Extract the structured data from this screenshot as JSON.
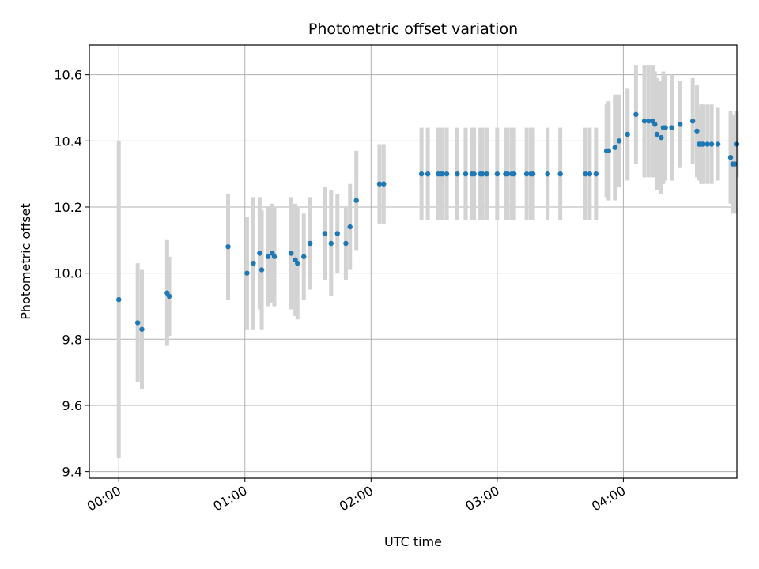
{
  "chart_data": {
    "type": "scatter",
    "title": "Photometric offset variation",
    "xlabel": "UTC time",
    "ylabel": "Photometric offset",
    "xlim": [
      "23:46:00",
      "04:54:00"
    ],
    "ylim": [
      9.38,
      10.69
    ],
    "grid": true,
    "x_ticks": [
      "00:00",
      "01:00",
      "02:00",
      "03:00",
      "04:00"
    ],
    "y_ticks": [
      "9.4",
      "9.6",
      "9.8",
      "10.0",
      "10.2",
      "10.4",
      "10.6"
    ],
    "colors": {
      "point": "#1f77b4",
      "errorbar": "#d3d3d3",
      "grid": "#b0b0b0"
    },
    "series": [
      {
        "x": [
          "00:00",
          "00:09",
          "00:11",
          "00:23",
          "00:24",
          "00:52",
          "01:01",
          "01:04",
          "01:07",
          "01:08",
          "01:11",
          "01:13",
          "01:14",
          "01:22",
          "01:24",
          "01:25",
          "01:28",
          "01:31",
          "01:38",
          "01:41",
          "01:44",
          "01:48",
          "01:50",
          "01:53",
          "02:04",
          "02:06",
          "02:24",
          "02:27",
          "02:32",
          "02:33",
          "02:34",
          "02:36",
          "02:41",
          "02:45",
          "02:48",
          "02:49",
          "02:52",
          "02:53",
          "02:55",
          "03:00",
          "03:04",
          "03:05",
          "03:07",
          "03:08",
          "03:14",
          "03:16",
          "03:17",
          "03:24",
          "03:30",
          "03:42",
          "03:44",
          "03:47",
          "03:52",
          "03:53",
          "03:56",
          "03:58",
          "04:02",
          "04:06",
          "04:10",
          "04:12",
          "04:14",
          "04:15",
          "04:16",
          "04:18",
          "04:19",
          "04:20",
          "04:23",
          "04:27",
          "04:33",
          "04:35",
          "04:36",
          "04:37",
          "04:38",
          "04:40",
          "04:42",
          "04:45",
          "04:51",
          "04:52",
          "04:53",
          "04:54"
        ],
        "y": [
          9.92,
          9.85,
          9.83,
          9.94,
          9.93,
          10.08,
          10.0,
          10.03,
          10.06,
          10.01,
          10.05,
          10.06,
          10.05,
          10.06,
          10.04,
          10.03,
          10.05,
          10.09,
          10.12,
          10.09,
          10.12,
          10.09,
          10.14,
          10.22,
          10.27,
          10.27,
          10.3,
          10.3,
          10.3,
          10.3,
          10.3,
          10.3,
          10.3,
          10.3,
          10.3,
          10.3,
          10.3,
          10.3,
          10.3,
          10.3,
          10.3,
          10.3,
          10.3,
          10.3,
          10.3,
          10.3,
          10.3,
          10.3,
          10.3,
          10.3,
          10.3,
          10.3,
          10.37,
          10.37,
          10.38,
          10.4,
          10.42,
          10.48,
          10.46,
          10.46,
          10.46,
          10.45,
          10.42,
          10.41,
          10.44,
          10.44,
          10.44,
          10.45,
          10.46,
          10.43,
          10.39,
          10.39,
          10.39,
          10.39,
          10.39,
          10.39,
          10.35,
          10.33,
          10.33,
          10.39
        ],
        "error": [
          0.48,
          0.18,
          0.18,
          0.16,
          0.12,
          0.16,
          0.17,
          0.2,
          0.17,
          0.18,
          0.15,
          0.15,
          0.15,
          0.17,
          0.17,
          0.17,
          0.13,
          0.14,
          0.14,
          0.16,
          0.12,
          0.11,
          0.13,
          0.15,
          0.12,
          0.12,
          0.14,
          0.14,
          0.14,
          0.14,
          0.14,
          0.14,
          0.14,
          0.14,
          0.14,
          0.14,
          0.14,
          0.14,
          0.14,
          0.14,
          0.14,
          0.14,
          0.14,
          0.14,
          0.14,
          0.14,
          0.14,
          0.14,
          0.14,
          0.14,
          0.14,
          0.14,
          0.14,
          0.15,
          0.16,
          0.14,
          0.14,
          0.15,
          0.17,
          0.17,
          0.17,
          0.16,
          0.17,
          0.17,
          0.17,
          0.16,
          0.16,
          0.13,
          0.13,
          0.14,
          0.11,
          0.12,
          0.12,
          0.12,
          0.12,
          0.11,
          0.14,
          0.15,
          0.15,
          0.1
        ]
      }
    ]
  }
}
